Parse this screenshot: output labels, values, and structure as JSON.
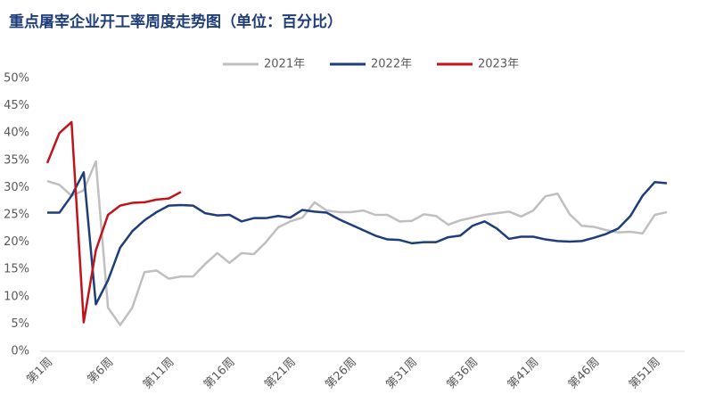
{
  "chart_data": {
    "type": "line",
    "title": "重点屠宰企业开工率周度走势图（单位：百分比）",
    "categories": [
      "第1周",
      null,
      null,
      null,
      null,
      "第6周",
      null,
      null,
      null,
      null,
      "第11周",
      null,
      null,
      null,
      null,
      "第16周",
      null,
      null,
      null,
      null,
      "第21周",
      null,
      null,
      null,
      null,
      "第26周",
      null,
      null,
      null,
      null,
      "第31周",
      null,
      null,
      null,
      null,
      "第36周",
      null,
      null,
      null,
      null,
      "第41周",
      null,
      null,
      null,
      null,
      "第46周",
      null,
      null,
      null,
      null,
      "第51周",
      null
    ],
    "series": [
      {
        "name": "2021年",
        "color": "#bfbfbf",
        "values": [
          31.2,
          30.5,
          28.5,
          29.5,
          34.8,
          8,
          4.8,
          8,
          14.5,
          14.8,
          13.3,
          13.7,
          13.7,
          16,
          18,
          16.2,
          18,
          17.8,
          20,
          22.7,
          23.8,
          24.5,
          27.3,
          25.8,
          25.5,
          25.5,
          25.8,
          25,
          25,
          23.8,
          23.9,
          25.1,
          24.8,
          23.2,
          24,
          24.5,
          25,
          25.3,
          25.6,
          24.7,
          25.8,
          28.4,
          28.9,
          25.1,
          23,
          22.8,
          22.2,
          21.8,
          21.9,
          21.6,
          25,
          25.5
        ]
      },
      {
        "name": "2022年",
        "color": "#1f3d7a",
        "values": [
          25.4,
          25.4,
          28.5,
          32.8,
          8.6,
          13,
          19,
          22,
          24,
          25.5,
          26.7,
          26.8,
          26.7,
          25.3,
          24.9,
          25,
          23.8,
          24.4,
          24.4,
          24.8,
          24.5,
          25.9,
          25.6,
          25.4,
          24.2,
          23.2,
          22.2,
          21.2,
          20.5,
          20.4,
          19.8,
          20,
          20,
          20.9,
          21.2,
          23,
          23.8,
          22.5,
          20.6,
          21,
          21,
          20.5,
          20.2,
          20.1,
          20.2,
          20.8,
          21.5,
          22.5,
          24.8,
          28.5,
          31,
          30.8
        ]
      },
      {
        "name": "2023年",
        "color": "#c0141c",
        "values": [
          34.5,
          40,
          42,
          5.3,
          18.5,
          25,
          26.7,
          27.2,
          27.3,
          27.8,
          28,
          29.2,
          null,
          null,
          null,
          null,
          null,
          null,
          null,
          null,
          null,
          null,
          null,
          null,
          null,
          null,
          null,
          null,
          null,
          null,
          null,
          null,
          null,
          null,
          null,
          null,
          null,
          null,
          null,
          null,
          null,
          null,
          null,
          null,
          null,
          null,
          null,
          null,
          null,
          null,
          null,
          null
        ]
      }
    ],
    "ylim": [
      0,
      50
    ],
    "yticks": [
      {
        "value": 0,
        "label": "0%"
      },
      {
        "value": 5,
        "label": "5%"
      },
      {
        "value": 10,
        "label": "10%"
      },
      {
        "value": 15,
        "label": "15%"
      },
      {
        "value": 20,
        "label": "20%"
      },
      {
        "value": 25,
        "label": "25%"
      },
      {
        "value": 30,
        "label": "30%"
      },
      {
        "value": 35,
        "label": "35%"
      },
      {
        "value": 40,
        "label": "40%"
      },
      {
        "value": 45,
        "label": "45%"
      },
      {
        "value": 50,
        "label": "50%"
      }
    ],
    "grid": false
  }
}
